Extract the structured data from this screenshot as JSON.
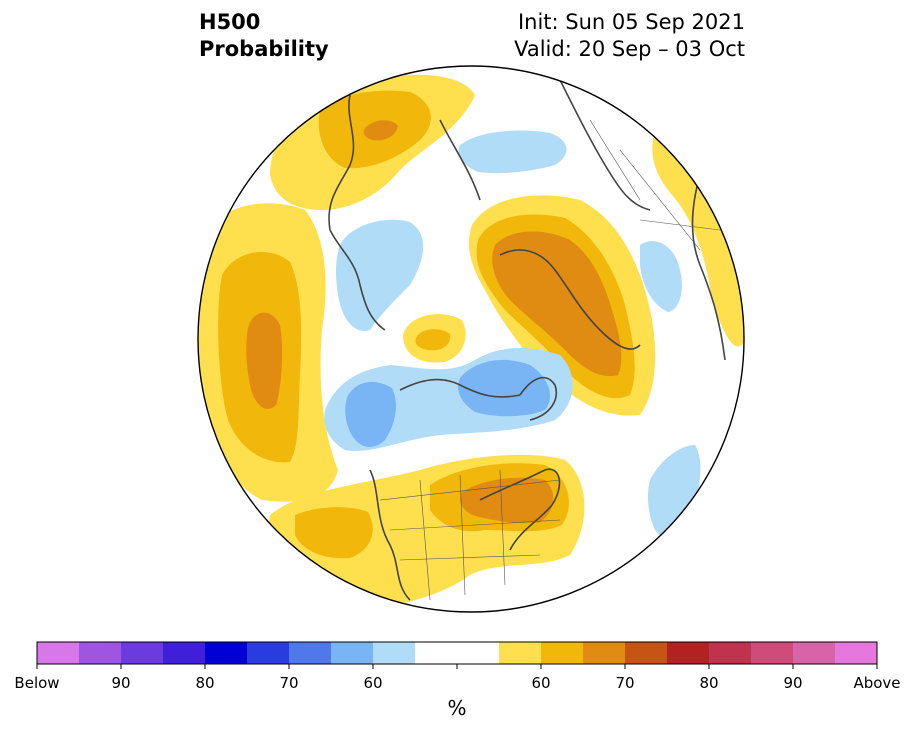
{
  "header": {
    "title_line1": "H500",
    "title_line2": "Probability",
    "init_text": "Init: Sun 05 Sep 2021",
    "valid_text": "Valid: 20 Sep – 03 Oct"
  },
  "colorbar": {
    "unit_label": "%",
    "colors": [
      "#d777e8",
      "#9f55e2",
      "#6c3be0",
      "#3f1fd9",
      "#0000d6",
      "#2a3be0",
      "#4f78ea",
      "#79b4f5",
      "#b0dcf8",
      "#ffffff",
      "#ffffff",
      "#fee04e",
      "#f2b70b",
      "#e08b12",
      "#c65515",
      "#b22222",
      "#c0334e",
      "#cf4c7a",
      "#d863a8",
      "#e677de"
    ],
    "tick_labels": [
      "Below",
      "90",
      "80",
      "70",
      "60",
      "60",
      "70",
      "80",
      "90",
      "Above"
    ]
  },
  "map": {
    "palette": {
      "yellow": "#fee04e",
      "gold": "#f2b70b",
      "orange": "#e08b12",
      "blue_light": "#b0dcf8",
      "blue_mid": "#79b4f5",
      "coast": "#444444"
    }
  }
}
